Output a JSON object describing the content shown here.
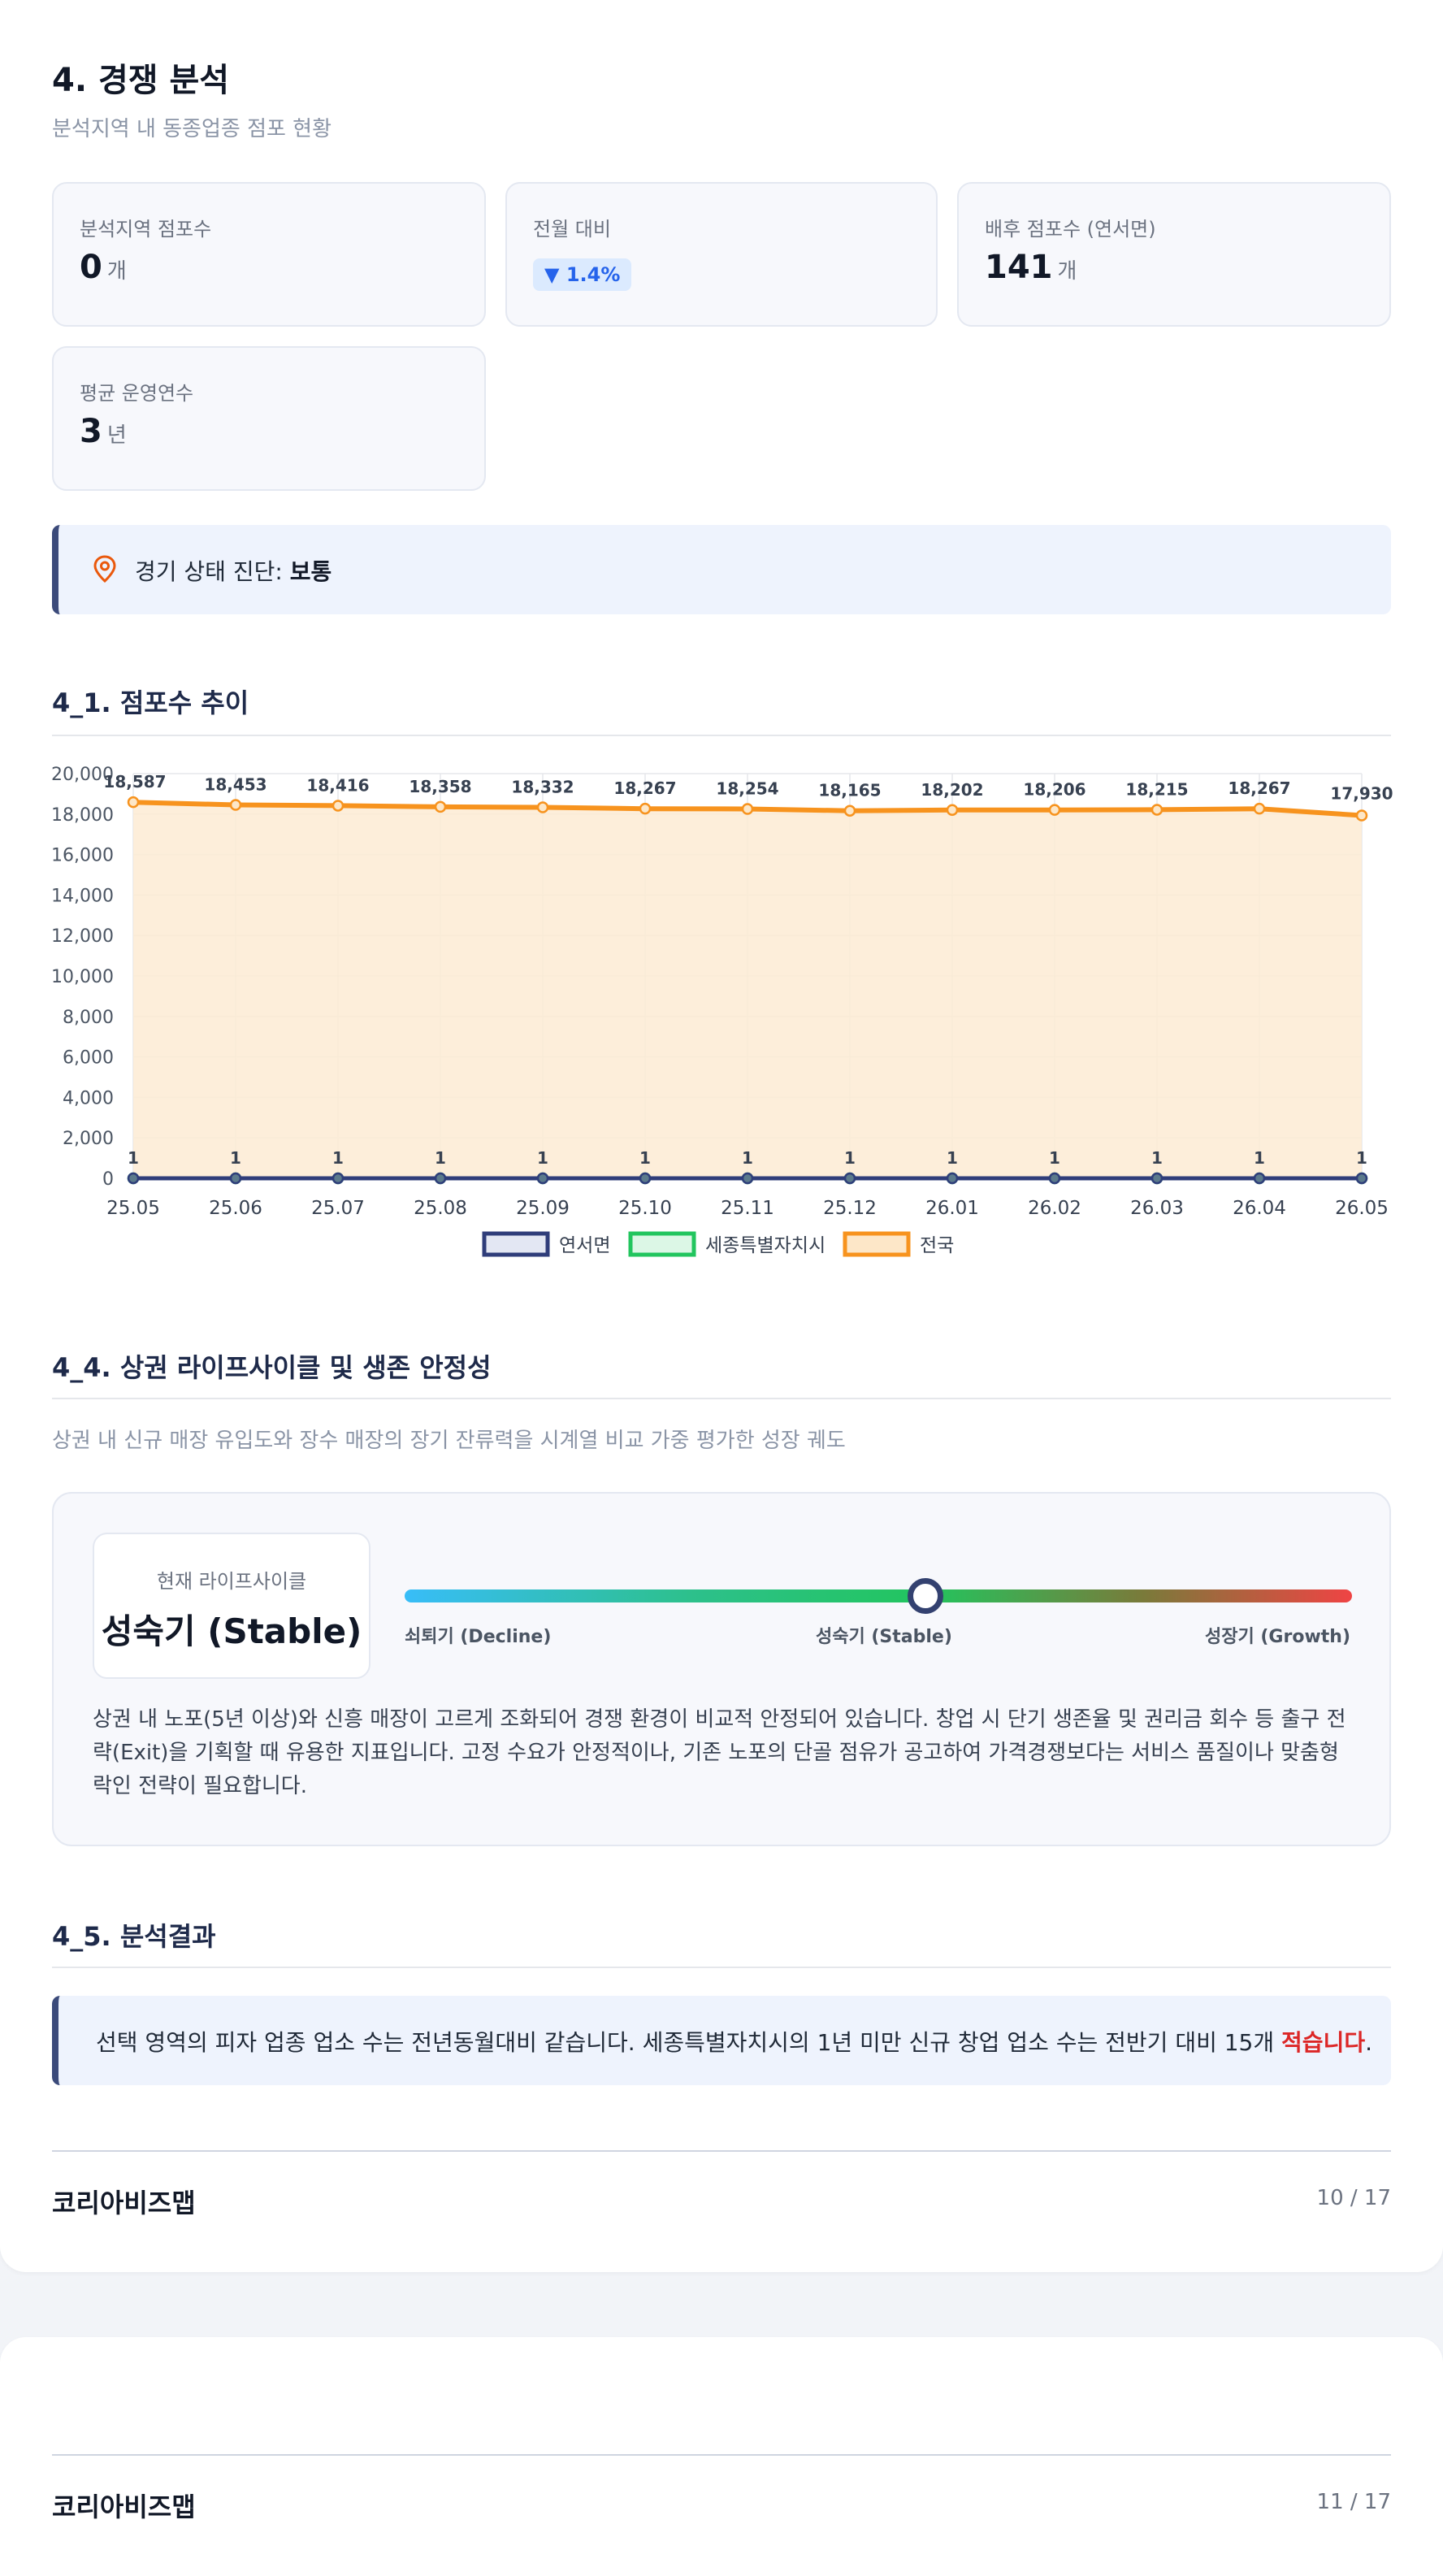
{
  "section": {
    "title": "4. 경쟁 분석",
    "subtitle": "분석지역 내 동종업종 점포 현황"
  },
  "kpis": {
    "store_count": {
      "label": "분석지역 점포수",
      "value": "0",
      "unit": "개"
    },
    "mom_change": {
      "label": "전월 대비",
      "value": "▼ 1.4%"
    },
    "hinterland": {
      "label": "배후 점포수 (연서면)",
      "value": "141",
      "unit": "개"
    },
    "avg_years": {
      "label": "평균 운영연수",
      "value": "3",
      "unit": "년"
    }
  },
  "diagnosis": {
    "label": "경기 상태 진단:",
    "value": "보통"
  },
  "trend": {
    "title": "4_1. 점포수 추이"
  },
  "chart_data": {
    "type": "line",
    "x": [
      "25.05",
      "25.06",
      "25.07",
      "25.08",
      "25.09",
      "25.10",
      "25.11",
      "25.12",
      "26.01",
      "26.02",
      "26.03",
      "26.04",
      "26.05"
    ],
    "ylim": [
      0,
      20000
    ],
    "yticks": [
      "0",
      "2,000",
      "4,000",
      "6,000",
      "8,000",
      "10,000",
      "12,000",
      "14,000",
      "16,000",
      "18,000",
      "20,000"
    ],
    "legend_position": "bottom",
    "series": [
      {
        "name": "연서면",
        "color": "#2f3d7a",
        "values": [
          0,
          0,
          0,
          0,
          0,
          0,
          0,
          0,
          0,
          0,
          0,
          0,
          0
        ],
        "labels": []
      },
      {
        "name": "세종특별자치시",
        "color": "#22c55e",
        "values": [
          1,
          1,
          1,
          1,
          1,
          1,
          1,
          1,
          1,
          1,
          1,
          1,
          1
        ],
        "labels": [
          "1",
          "1",
          "1",
          "1",
          "1",
          "1",
          "1",
          "1",
          "1",
          "1",
          "1",
          "1",
          "1"
        ]
      },
      {
        "name": "전국",
        "color": "#f7931e",
        "values": [
          18587,
          18453,
          18416,
          18358,
          18332,
          18267,
          18254,
          18165,
          18202,
          18206,
          18215,
          18267,
          17930
        ],
        "labels": [
          "18,587",
          "18,453",
          "18,416",
          "18,358",
          "18,332",
          "18,267",
          "18,254",
          "18,165",
          "18,202",
          "18,206",
          "18,215",
          "18,267",
          "17,930"
        ]
      }
    ]
  },
  "lifecycle": {
    "title": "4_4. 상권 라이프사이클 및 생존 안정성",
    "subtitle": "상권 내 신규 매장 유입도와 장수 매장의 장기 잔류력을 시계열 비교 가중 평가한 성장 궤도",
    "current_label": "현재 라이프사이클",
    "current_value": "성숙기 (Stable)",
    "position": 0.55,
    "ticks": {
      "left": "쇠퇴기 (Decline)",
      "mid": "성숙기 (Stable)",
      "right": "성장기 (Growth)"
    },
    "description": "상권 내 노포(5년 이상)와 신흥 매장이 고르게 조화되어 경쟁 환경이 비교적 안정되어 있습니다. 창업 시 단기 생존율 및 권리금 회수 등 출구 전략(Exit)을 기획할 때 유용한 지표입니다. 고정 수요가 안정적이나, 기존 노포의 단골 점유가 공고하여 가격경쟁보다는 서비스 품질이나 맞춤형 락인 전략이 필요합니다."
  },
  "result": {
    "title": "4_5. 분석결과",
    "text": "선택 영역의 피자 업종 업소 수는 전년동월대비 같습니다. 세종특별자치시의 1년 미만 신규 창업 업소 수는 전반기 대비 15개 ",
    "highlight": "적습니다",
    "tail": "."
  },
  "footer1": {
    "brand": "코리아비즈맵",
    "page": "10 / 17"
  },
  "footer2": {
    "brand": "코리아비즈맵",
    "page": "11 / 17"
  }
}
